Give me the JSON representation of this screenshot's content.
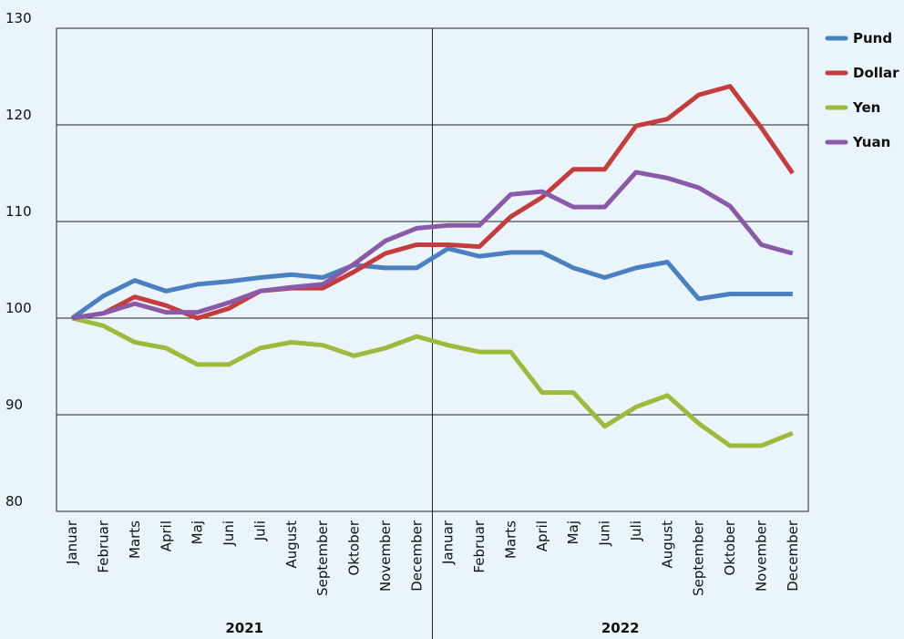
{
  "chart_data": {
    "type": "line",
    "categories": [
      "Januar",
      "Februar",
      "Marts",
      "April",
      "Maj",
      "Juni",
      "Juli",
      "August",
      "September",
      "Oktober",
      "November",
      "December",
      "Januar",
      "Februar",
      "Marts",
      "April",
      "Maj",
      "Juni",
      "Juli",
      "August",
      "September",
      "Oktober",
      "November",
      "December"
    ],
    "x_groups": [
      "2021",
      "2022"
    ],
    "series": [
      {
        "name": "Pund",
        "color": "#4a7fc1",
        "values": [
          100,
          102.3,
          103.9,
          102.8,
          103.5,
          103.8,
          104.2,
          104.5,
          104.2,
          105.5,
          105.2,
          105.2,
          107.2,
          106.4,
          106.8,
          106.8,
          105.2,
          104.2,
          105.2,
          105.8,
          102,
          102.5,
          102.5,
          102.5
        ]
      },
      {
        "name": "Dollar",
        "color": "#c43c3c",
        "values": [
          100,
          100.5,
          102.2,
          101.3,
          100,
          101,
          102.8,
          103.1,
          103.1,
          104.8,
          106.7,
          107.6,
          107.6,
          107.4,
          110.5,
          112.5,
          115.4,
          115.4,
          119.9,
          120.6,
          123.1,
          124,
          119.7,
          115
        ]
      },
      {
        "name": "Yen",
        "color": "#9bbb3c",
        "values": [
          100,
          99.2,
          97.5,
          96.9,
          95.2,
          95.2,
          96.9,
          97.5,
          97.2,
          96.1,
          96.9,
          98.1,
          97.2,
          96.5,
          96.5,
          92.3,
          92.3,
          88.8,
          90.8,
          92,
          89.1,
          86.8,
          86.8,
          88.1
        ]
      },
      {
        "name": "Yuan",
        "color": "#8a5aa8",
        "values": [
          100,
          100.5,
          101.5,
          100.6,
          100.6,
          101.6,
          102.8,
          103.2,
          103.5,
          105.6,
          108,
          109.3,
          109.6,
          109.6,
          112.8,
          113.1,
          111.5,
          111.5,
          115.1,
          114.5,
          113.5,
          111.6,
          107.6,
          106.7
        ]
      }
    ],
    "ylim": [
      80,
      130
    ],
    "yticks": [
      80,
      90,
      100,
      110,
      120,
      130
    ],
    "grid": true,
    "legend": "right"
  }
}
